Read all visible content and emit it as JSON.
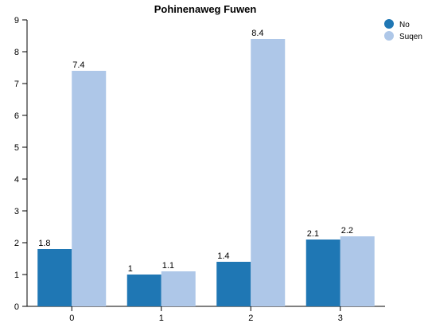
{
  "chart_data": {
    "type": "bar",
    "title": "Pohinenaweg Fuwen",
    "xlabel": "",
    "ylabel": "",
    "categories": [
      "0",
      "1",
      "2",
      "3"
    ],
    "series": [
      {
        "name": "No",
        "values": [
          1.8,
          1,
          1.4,
          2.1
        ],
        "labels": [
          "1.8",
          "1",
          "1.4",
          "2.1"
        ],
        "color": "#1f77b4"
      },
      {
        "name": "Suqen",
        "values": [
          7.4,
          1.1,
          8.4,
          2.2
        ],
        "labels": [
          "7.4",
          "1.1",
          "8.4",
          "2.2"
        ],
        "color": "#aec7e8"
      }
    ],
    "ylim": [
      0,
      9
    ],
    "yticks": [
      "0",
      "1",
      "2",
      "3",
      "4",
      "5",
      "6",
      "7",
      "8",
      "9"
    ],
    "grid": false,
    "legend_position": "top-right"
  }
}
